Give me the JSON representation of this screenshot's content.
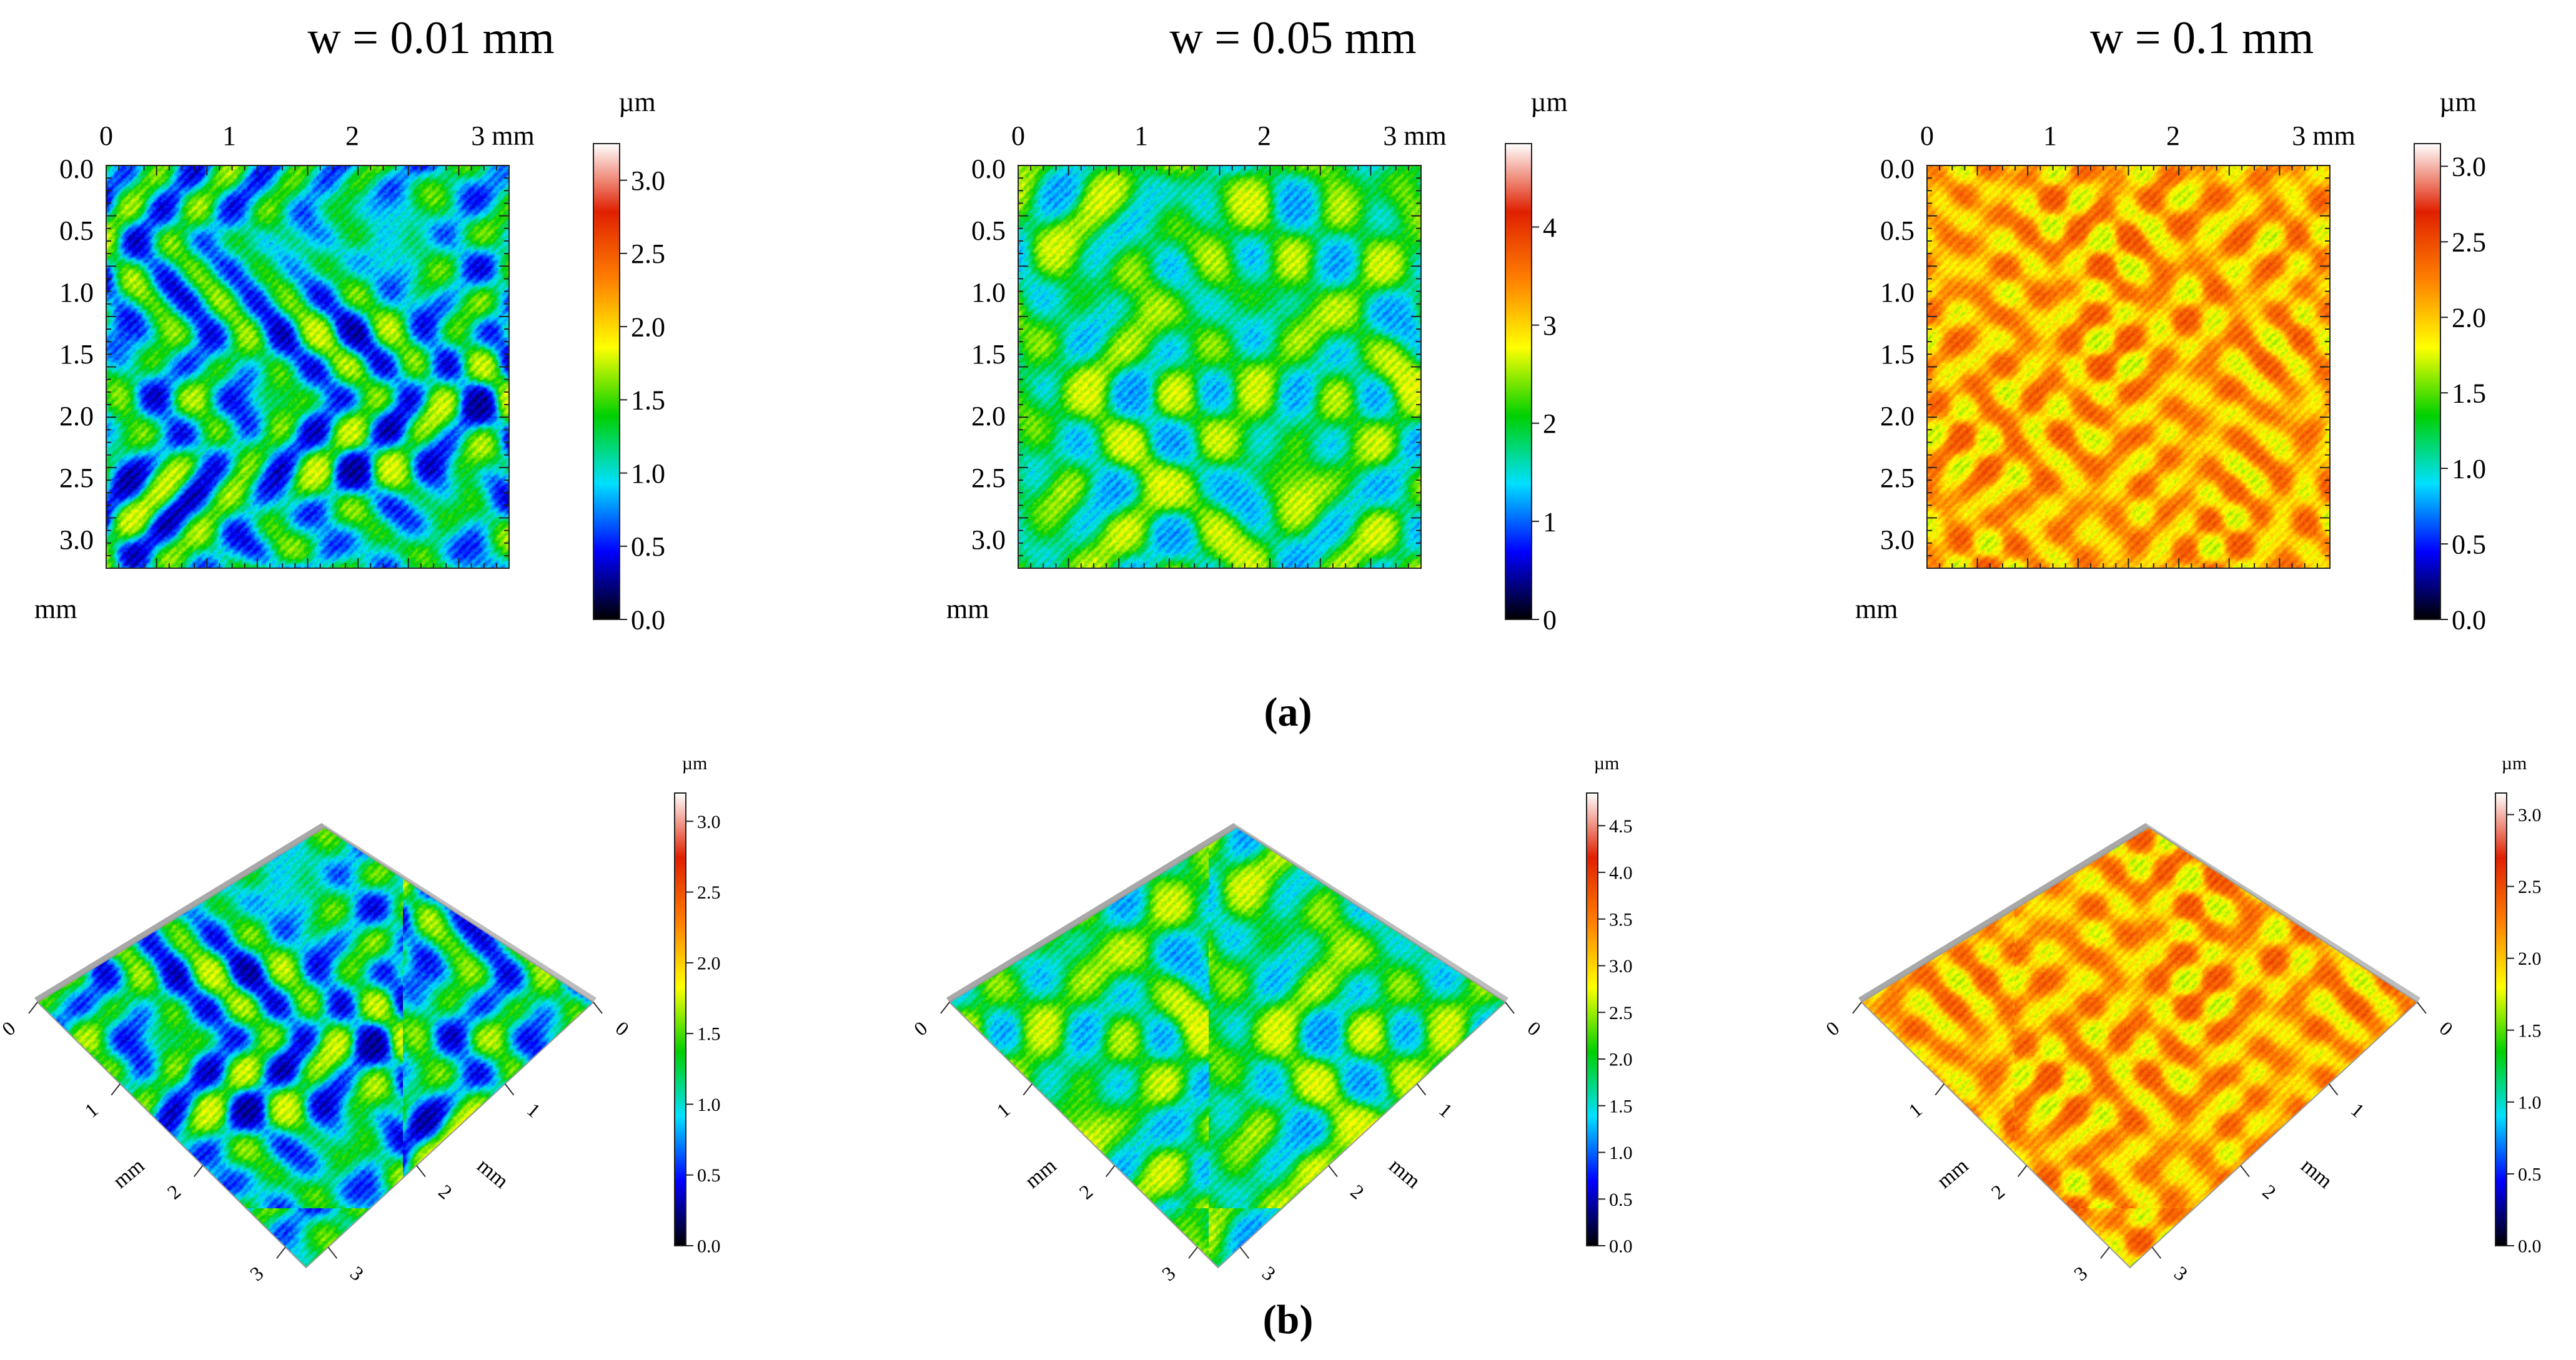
{
  "colors": {
    "scale": [
      "#000000",
      "#0000ff",
      "#00e0ff",
      "#00d000",
      "#ffff00",
      "#ff8000",
      "#e02000",
      "#ffffff"
    ]
  },
  "panels_top": [
    {
      "title": "w = 0.01 mm",
      "x_ticks": [
        "0",
        "1",
        "2",
        "3 mm"
      ],
      "y_ticks": [
        "0.0",
        "0.5",
        "1.0",
        "1.5",
        "2.0",
        "2.5",
        "3.0"
      ],
      "y_unit": "mm",
      "colorbar": {
        "unit": "µm",
        "ticks": [
          "0.0",
          "0.5",
          "1.0",
          "1.5",
          "2.0",
          "2.5",
          "3.0"
        ],
        "min": 0,
        "max": 3.25
      },
      "surface": {
        "base": 0.32,
        "amp": 0.24,
        "freq": 3.2,
        "seed": 1
      }
    },
    {
      "title": "w = 0.05 mm",
      "x_ticks": [
        "0",
        "1",
        "2",
        "3 mm"
      ],
      "y_ticks": [
        "0.0",
        "0.5",
        "1.0",
        "1.5",
        "2.0",
        "2.5",
        "3.0"
      ],
      "y_unit": "mm",
      "colorbar": {
        "unit": "µm",
        "ticks": [
          "0",
          "1",
          "2",
          "3",
          "4"
        ],
        "min": 0,
        "max": 4.85
      },
      "surface": {
        "base": 0.4,
        "amp": 0.16,
        "freq": 2.6,
        "seed": 2
      }
    },
    {
      "title": "w = 0.1 mm",
      "x_ticks": [
        "0",
        "1",
        "2",
        "3 mm"
      ],
      "y_ticks": [
        "0.0",
        "0.5",
        "1.0",
        "1.5",
        "2.0",
        "2.5",
        "3.0"
      ],
      "y_unit": "mm",
      "colorbar": {
        "unit": "µm",
        "ticks": [
          "0.0",
          "0.5",
          "1.0",
          "1.5",
          "2.0",
          "2.5",
          "3.0"
        ],
        "min": 0,
        "max": 3.15
      },
      "surface": {
        "base": 0.66,
        "amp": 0.12,
        "freq": 4.5,
        "seed": 3
      }
    }
  ],
  "panels_bottom": [
    {
      "left_ticks": [
        "0",
        "1",
        "2",
        "3"
      ],
      "right_ticks": [
        "0",
        "1",
        "2",
        "3"
      ],
      "axis_unit": "mm",
      "colorbar": {
        "unit": "µm",
        "ticks": [
          "0.0",
          "0.5",
          "1.0",
          "1.5",
          "2.0",
          "2.5",
          "3.0"
        ],
        "min": 0,
        "max": 3.2
      }
    },
    {
      "left_ticks": [
        "0",
        "1",
        "2",
        "3"
      ],
      "right_ticks": [
        "0",
        "1",
        "2",
        "3"
      ],
      "axis_unit": "mm",
      "colorbar": {
        "unit": "µm",
        "ticks": [
          "0.0",
          "0.5",
          "1.0",
          "1.5",
          "2.0",
          "2.5",
          "3.0",
          "3.5",
          "4.0",
          "4.5"
        ],
        "min": 0,
        "max": 4.85
      }
    },
    {
      "left_ticks": [
        "0",
        "1",
        "2",
        "3"
      ],
      "right_ticks": [
        "0",
        "1",
        "2",
        "3"
      ],
      "axis_unit": "mm",
      "colorbar": {
        "unit": "µm",
        "ticks": [
          "0.0",
          "0.5",
          "1.0",
          "1.5",
          "2.0",
          "2.5",
          "3.0"
        ],
        "min": 0,
        "max": 3.15
      }
    }
  ],
  "captions": {
    "a": "(a)",
    "b": "(b)"
  }
}
